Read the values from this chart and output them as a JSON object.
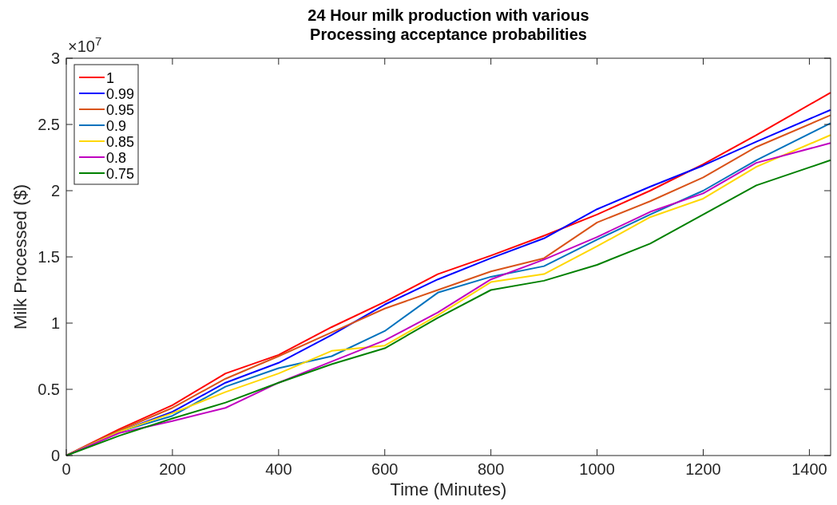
{
  "chart_data": {
    "type": "line",
    "title": "24 Hour milk production with various\nProcessing acceptance probabilities",
    "xlabel": "Time (Minutes)",
    "ylabel": "Milk Processed ($)",
    "annotations": [
      "×10$^{7}$"
    ],
    "x": [
      0,
      100,
      200,
      300,
      400,
      500,
      600,
      700,
      800,
      900,
      1000,
      1100,
      1200,
      1300,
      1440
    ],
    "xlim": [
      0,
      1440
    ],
    "xticks": [
      0,
      200,
      400,
      600,
      800,
      1000,
      1200,
      1400
    ],
    "ylim": [
      0,
      3
    ],
    "yticks": [
      0,
      0.5,
      1,
      1.5,
      2,
      2.5,
      3
    ],
    "grid": false,
    "legend": "top left",
    "line_style": "solid",
    "series": [
      {
        "name": "1",
        "color": "#ff0000",
        "values": [
          0,
          0.2,
          0.38,
          0.62,
          0.76,
          0.97,
          1.16,
          1.37,
          1.51,
          1.66,
          1.82,
          2.0,
          2.2,
          2.42,
          2.74
        ]
      },
      {
        "name": "0.99",
        "color": "#0000ff",
        "values": [
          0,
          0.18,
          0.33,
          0.55,
          0.7,
          0.91,
          1.14,
          1.33,
          1.49,
          1.64,
          1.86,
          2.03,
          2.19,
          2.37,
          2.61
        ]
      },
      {
        "name": "0.95",
        "color": "#d95319",
        "values": [
          0,
          0.19,
          0.36,
          0.58,
          0.75,
          0.93,
          1.11,
          1.25,
          1.39,
          1.49,
          1.76,
          1.92,
          2.1,
          2.33,
          2.57
        ]
      },
      {
        "name": "0.9",
        "color": "#0072bd",
        "values": [
          0,
          0.18,
          0.3,
          0.52,
          0.66,
          0.75,
          0.94,
          1.23,
          1.35,
          1.43,
          1.63,
          1.82,
          2.0,
          2.23,
          2.51
        ]
      },
      {
        "name": "0.85",
        "color": "#ffd700",
        "values": [
          0,
          0.18,
          0.32,
          0.48,
          0.62,
          0.79,
          0.83,
          1.06,
          1.31,
          1.37,
          1.58,
          1.8,
          1.94,
          2.18,
          2.42
        ]
      },
      {
        "name": "0.8",
        "color": "#c000c0",
        "values": [
          0,
          0.17,
          0.26,
          0.36,
          0.55,
          0.71,
          0.87,
          1.08,
          1.33,
          1.48,
          1.65,
          1.84,
          1.98,
          2.21,
          2.36
        ]
      },
      {
        "name": "0.75",
        "color": "#008000",
        "values": [
          0,
          0.15,
          0.28,
          0.4,
          0.55,
          0.69,
          0.81,
          1.04,
          1.25,
          1.32,
          1.44,
          1.6,
          1.82,
          2.04,
          2.23
        ]
      }
    ]
  }
}
